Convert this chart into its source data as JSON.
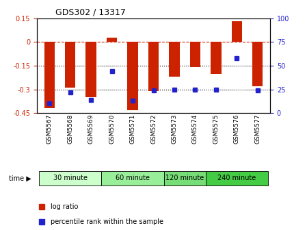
{
  "title": "GDS302 / 13317",
  "samples": [
    "GSM5567",
    "GSM5568",
    "GSM5569",
    "GSM5570",
    "GSM5571",
    "GSM5572",
    "GSM5573",
    "GSM5574",
    "GSM5575",
    "GSM5576",
    "GSM5577"
  ],
  "log_ratios": [
    -0.42,
    -0.29,
    -0.35,
    0.03,
    -0.43,
    -0.31,
    -0.22,
    -0.16,
    -0.2,
    0.13,
    -0.28
  ],
  "percentile_ranks": [
    10,
    22,
    14,
    44,
    13,
    24,
    25,
    25,
    25,
    58,
    24
  ],
  "ylim_left": [
    -0.45,
    0.15
  ],
  "ylim_right": [
    0,
    100
  ],
  "yticks_left": [
    0.15,
    0,
    -0.15,
    -0.3,
    -0.45
  ],
  "yticks_right": [
    100,
    75,
    50,
    25,
    0
  ],
  "hline_dashed": 0,
  "hlines_dotted": [
    -0.15,
    -0.3
  ],
  "bar_color": "#cc2200",
  "dot_color": "#2222cc",
  "time_groups": [
    {
      "label": "30 minute",
      "start": 0,
      "end": 3,
      "color": "#ccffcc"
    },
    {
      "label": "60 minute",
      "start": 3,
      "end": 6,
      "color": "#99ee99"
    },
    {
      "label": "120 minute",
      "start": 6,
      "end": 8,
      "color": "#77dd77"
    },
    {
      "label": "240 minute",
      "start": 8,
      "end": 11,
      "color": "#44cc44"
    }
  ],
  "legend_log_ratio": "log ratio",
  "legend_percentile": "percentile rank within the sample",
  "time_label": "time",
  "bar_width": 0.5
}
